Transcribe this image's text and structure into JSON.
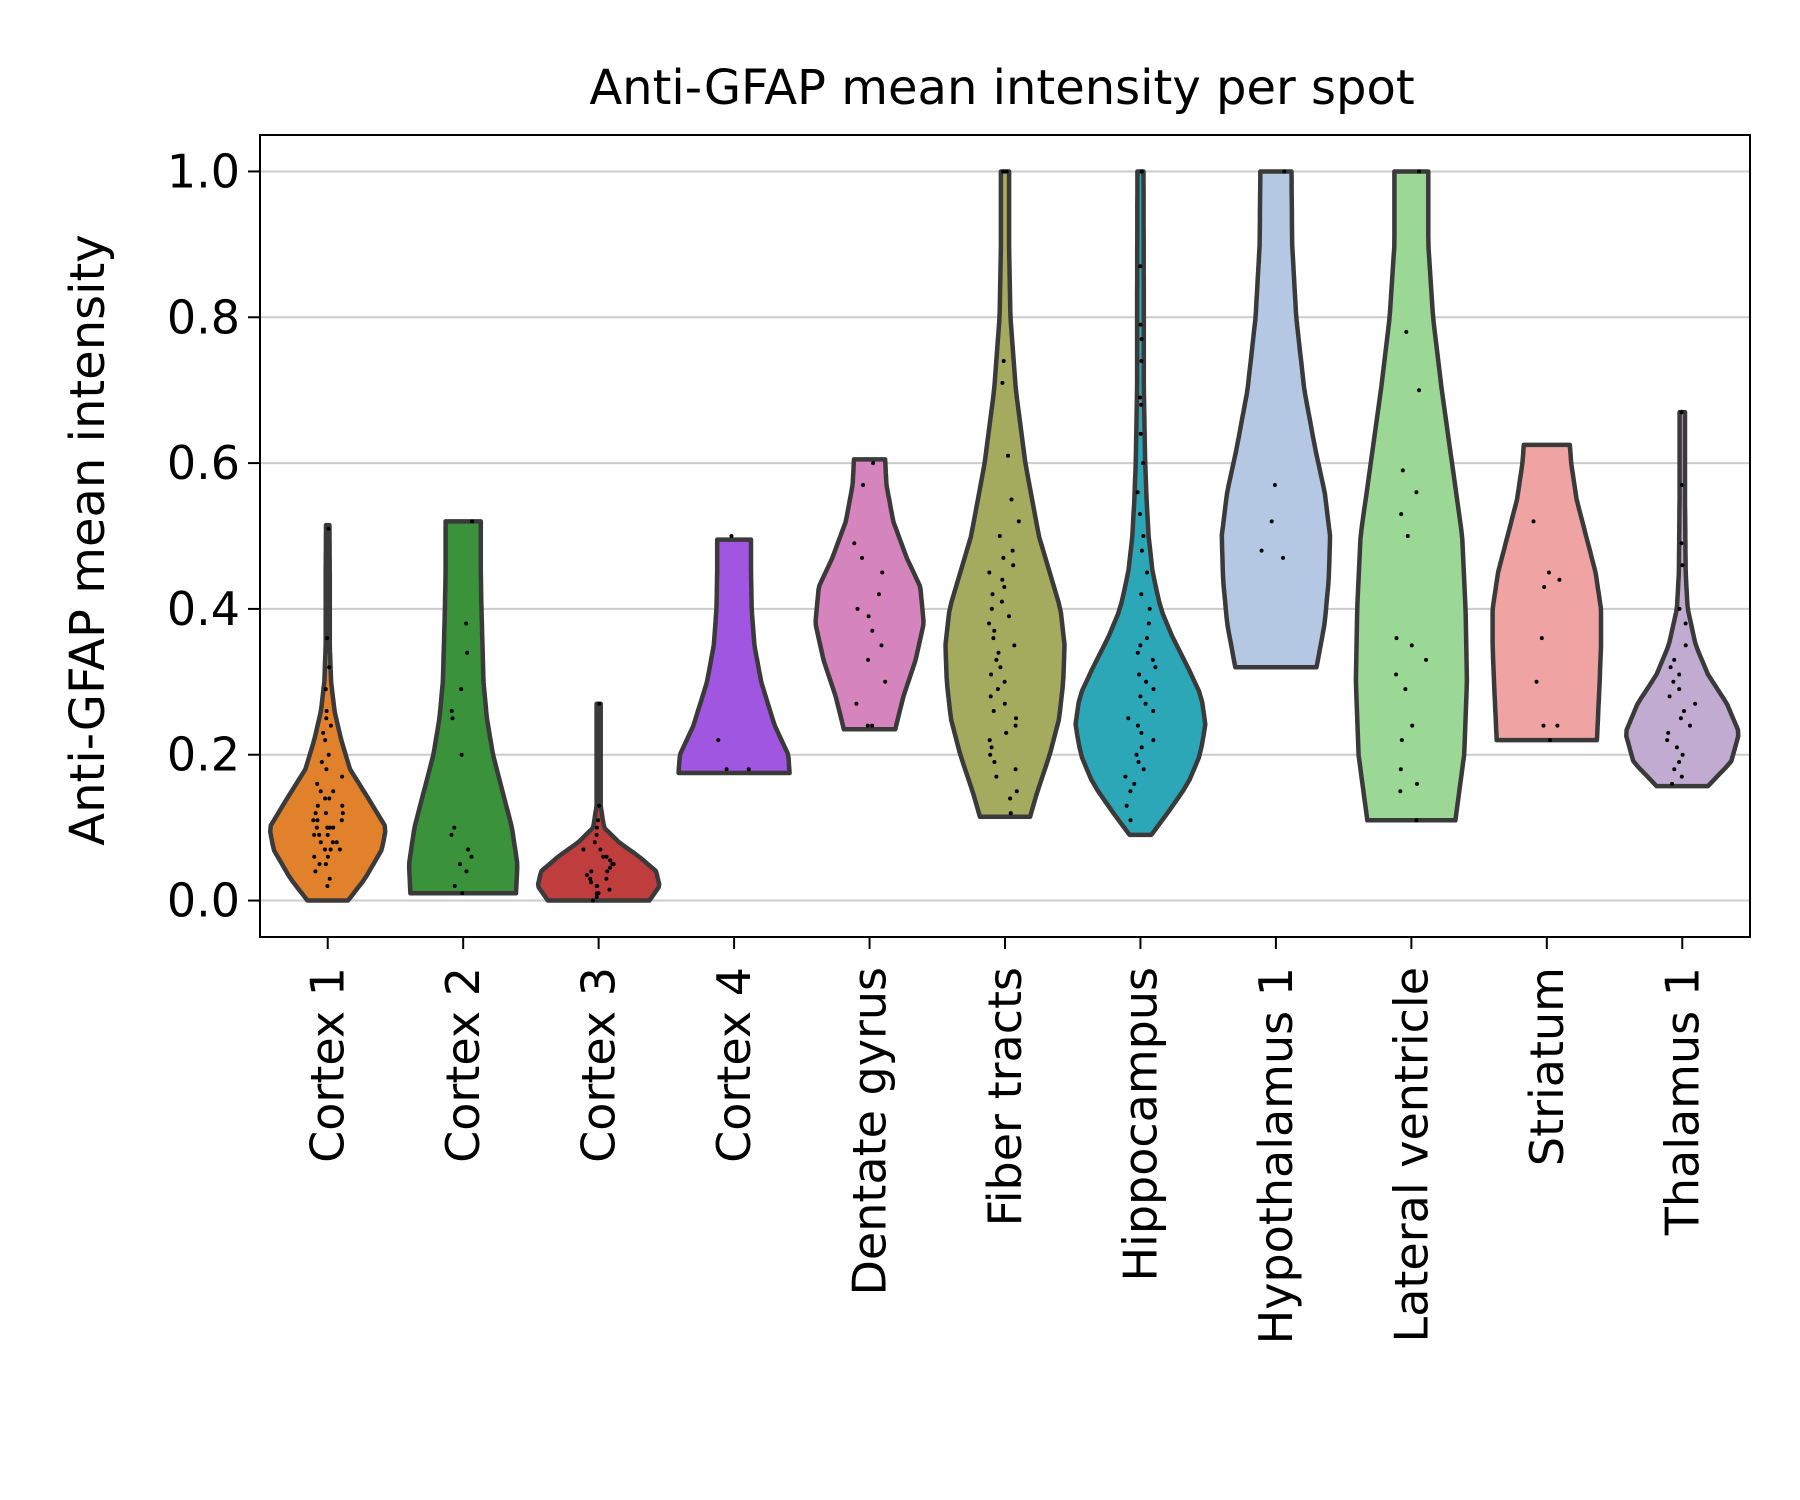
{
  "chart_data": {
    "type": "violin",
    "title": "Anti-GFAP mean intensity per spot",
    "ylabel": "Anti-GFAP mean intensity",
    "xlabel": "",
    "ylim": [
      -0.05,
      1.05
    ],
    "yticks": [
      0.0,
      0.2,
      0.4,
      0.6,
      0.8,
      1.0
    ],
    "ytick_labels": [
      "0.0",
      "0.2",
      "0.4",
      "0.6",
      "0.8",
      "1.0"
    ],
    "grid": "horizontal",
    "categories": [
      "Cortex 1",
      "Cortex 2",
      "Cortex 3",
      "Cortex 4",
      "Dentate gyrus",
      "Fiber tracts",
      "Hippocampus",
      "Hypothalamus 1",
      "Lateral ventricle",
      "Striatum",
      "Thalamus 1"
    ],
    "series": [
      {
        "category": "Cortex 1",
        "color": "#e1812c",
        "min": 0.0,
        "max": 0.515,
        "width_profile": [
          [
            0.0,
            0.3
          ],
          [
            0.03,
            0.55
          ],
          [
            0.07,
            0.8
          ],
          [
            0.1,
            0.86
          ],
          [
            0.14,
            0.6
          ],
          [
            0.18,
            0.33
          ],
          [
            0.22,
            0.2
          ],
          [
            0.26,
            0.1
          ],
          [
            0.3,
            0.05
          ],
          [
            0.35,
            0.03
          ],
          [
            0.45,
            0.03
          ],
          [
            0.515,
            0.025
          ]
        ],
        "points": [
          0.02,
          0.03,
          0.04,
          0.05,
          0.05,
          0.06,
          0.06,
          0.07,
          0.07,
          0.07,
          0.08,
          0.08,
          0.08,
          0.09,
          0.09,
          0.09,
          0.1,
          0.1,
          0.1,
          0.1,
          0.11,
          0.11,
          0.11,
          0.12,
          0.12,
          0.12,
          0.13,
          0.13,
          0.14,
          0.14,
          0.15,
          0.15,
          0.16,
          0.17,
          0.18,
          0.19,
          0.2,
          0.22,
          0.23,
          0.24,
          0.25,
          0.26,
          0.29,
          0.32,
          0.36,
          0.51
        ]
      },
      {
        "category": "Cortex 2",
        "color": "#3a923a",
        "min": 0.01,
        "max": 0.52,
        "width_profile": [
          [
            0.01,
            0.78
          ],
          [
            0.05,
            0.8
          ],
          [
            0.1,
            0.72
          ],
          [
            0.15,
            0.58
          ],
          [
            0.2,
            0.44
          ],
          [
            0.25,
            0.35
          ],
          [
            0.3,
            0.3
          ],
          [
            0.4,
            0.27
          ],
          [
            0.45,
            0.26
          ],
          [
            0.52,
            0.26
          ]
        ],
        "points": [
          0.01,
          0.02,
          0.04,
          0.05,
          0.06,
          0.07,
          0.09,
          0.1,
          0.2,
          0.25,
          0.26,
          0.29,
          0.34,
          0.38,
          0.52
        ]
      },
      {
        "category": "Cortex 3",
        "color": "#c03d3e",
        "min": 0.0,
        "max": 0.27,
        "width_profile": [
          [
            0.0,
            0.75
          ],
          [
            0.02,
            0.9
          ],
          [
            0.04,
            0.85
          ],
          [
            0.06,
            0.6
          ],
          [
            0.08,
            0.3
          ],
          [
            0.1,
            0.08
          ],
          [
            0.13,
            0.03
          ],
          [
            0.2,
            0.03
          ],
          [
            0.27,
            0.03
          ]
        ],
        "points": [
          0.0,
          0.005,
          0.01,
          0.01,
          0.015,
          0.02,
          0.02,
          0.025,
          0.03,
          0.03,
          0.035,
          0.04,
          0.04,
          0.045,
          0.05,
          0.05,
          0.055,
          0.06,
          0.06,
          0.07,
          0.07,
          0.08,
          0.09,
          0.1,
          0.11,
          0.13,
          0.27
        ]
      },
      {
        "category": "Cortex 4",
        "color": "#9372b2",
        "fill": "#a056e0",
        "min": 0.175,
        "max": 0.495,
        "width_profile": [
          [
            0.175,
            0.82
          ],
          [
            0.2,
            0.8
          ],
          [
            0.24,
            0.6
          ],
          [
            0.3,
            0.4
          ],
          [
            0.35,
            0.3
          ],
          [
            0.4,
            0.26
          ],
          [
            0.45,
            0.25
          ],
          [
            0.495,
            0.25
          ]
        ],
        "points": [
          0.18,
          0.18,
          0.22,
          0.5
        ]
      },
      {
        "category": "Dentate gyrus",
        "color": "#d684bd",
        "min": 0.235,
        "max": 0.605,
        "width_profile": [
          [
            0.235,
            0.38
          ],
          [
            0.28,
            0.5
          ],
          [
            0.33,
            0.68
          ],
          [
            0.38,
            0.8
          ],
          [
            0.43,
            0.75
          ],
          [
            0.47,
            0.55
          ],
          [
            0.52,
            0.35
          ],
          [
            0.57,
            0.25
          ],
          [
            0.605,
            0.23
          ]
        ],
        "points": [
          0.24,
          0.24,
          0.27,
          0.3,
          0.33,
          0.35,
          0.37,
          0.39,
          0.4,
          0.42,
          0.45,
          0.47,
          0.49,
          0.57,
          0.6
        ]
      },
      {
        "category": "Fiber tracts",
        "color": "#a9aa35",
        "fill": "#a4aa5e",
        "min": 0.115,
        "max": 1.0,
        "width_profile": [
          [
            0.115,
            0.37
          ],
          [
            0.15,
            0.48
          ],
          [
            0.2,
            0.66
          ],
          [
            0.25,
            0.8
          ],
          [
            0.3,
            0.86
          ],
          [
            0.35,
            0.88
          ],
          [
            0.4,
            0.82
          ],
          [
            0.45,
            0.66
          ],
          [
            0.5,
            0.5
          ],
          [
            0.55,
            0.4
          ],
          [
            0.6,
            0.3
          ],
          [
            0.7,
            0.16
          ],
          [
            0.8,
            0.08
          ],
          [
            0.9,
            0.06
          ],
          [
            1.0,
            0.06
          ]
        ],
        "points": [
          0.12,
          0.14,
          0.15,
          0.17,
          0.18,
          0.19,
          0.2,
          0.21,
          0.22,
          0.23,
          0.24,
          0.25,
          0.26,
          0.27,
          0.28,
          0.29,
          0.3,
          0.31,
          0.32,
          0.33,
          0.34,
          0.35,
          0.36,
          0.37,
          0.38,
          0.39,
          0.4,
          0.41,
          0.42,
          0.43,
          0.44,
          0.45,
          0.46,
          0.47,
          0.48,
          0.5,
          0.52,
          0.55,
          0.61,
          0.71,
          0.74,
          1.0,
          1.0
        ]
      },
      {
        "category": "Hippocampus",
        "color": "#2ba7b8",
        "min": 0.09,
        "max": 1.0,
        "width_profile": [
          [
            0.09,
            0.16
          ],
          [
            0.12,
            0.4
          ],
          [
            0.16,
            0.7
          ],
          [
            0.2,
            0.88
          ],
          [
            0.24,
            0.96
          ],
          [
            0.28,
            0.9
          ],
          [
            0.32,
            0.7
          ],
          [
            0.36,
            0.48
          ],
          [
            0.4,
            0.3
          ],
          [
            0.45,
            0.18
          ],
          [
            0.5,
            0.12
          ],
          [
            0.55,
            0.09
          ],
          [
            0.6,
            0.07
          ],
          [
            0.7,
            0.05
          ],
          [
            0.8,
            0.05
          ],
          [
            1.0,
            0.045
          ]
        ],
        "points": [
          0.11,
          0.13,
          0.15,
          0.16,
          0.17,
          0.18,
          0.19,
          0.2,
          0.21,
          0.22,
          0.23,
          0.24,
          0.25,
          0.26,
          0.27,
          0.28,
          0.29,
          0.3,
          0.31,
          0.32,
          0.33,
          0.34,
          0.35,
          0.36,
          0.38,
          0.4,
          0.42,
          0.45,
          0.48,
          0.5,
          0.53,
          0.56,
          0.6,
          0.64,
          0.68,
          0.69,
          0.74,
          0.77,
          0.79,
          0.87,
          1.0
        ]
      },
      {
        "category": "Hypothalamus 1",
        "color": "#a9c0e0",
        "fill": "#b5c8e3",
        "min": 0.32,
        "max": 1.0,
        "width_profile": [
          [
            0.32,
            0.6
          ],
          [
            0.38,
            0.72
          ],
          [
            0.44,
            0.78
          ],
          [
            0.5,
            0.8
          ],
          [
            0.56,
            0.72
          ],
          [
            0.62,
            0.58
          ],
          [
            0.7,
            0.42
          ],
          [
            0.8,
            0.3
          ],
          [
            0.9,
            0.24
          ],
          [
            1.0,
            0.23
          ]
        ],
        "points": [
          0.47,
          0.48,
          0.52,
          0.57,
          1.0
        ]
      },
      {
        "category": "Lateral ventricle",
        "color": "#9bd795",
        "min": 0.11,
        "max": 1.0,
        "width_profile": [
          [
            0.11,
            0.65
          ],
          [
            0.2,
            0.78
          ],
          [
            0.3,
            0.82
          ],
          [
            0.4,
            0.8
          ],
          [
            0.5,
            0.75
          ],
          [
            0.6,
            0.6
          ],
          [
            0.7,
            0.45
          ],
          [
            0.8,
            0.32
          ],
          [
            0.9,
            0.25
          ],
          [
            1.0,
            0.25
          ]
        ],
        "points": [
          0.11,
          0.15,
          0.16,
          0.18,
          0.22,
          0.24,
          0.29,
          0.31,
          0.33,
          0.35,
          0.36,
          0.5,
          0.53,
          0.56,
          0.59,
          0.7,
          0.78,
          1.0
        ]
      },
      {
        "category": "Striatum",
        "color": "#f0a3a3",
        "min": 0.22,
        "max": 0.625,
        "width_profile": [
          [
            0.22,
            0.74
          ],
          [
            0.26,
            0.76
          ],
          [
            0.3,
            0.78
          ],
          [
            0.35,
            0.8
          ],
          [
            0.4,
            0.8
          ],
          [
            0.45,
            0.72
          ],
          [
            0.5,
            0.58
          ],
          [
            0.55,
            0.44
          ],
          [
            0.6,
            0.36
          ],
          [
            0.625,
            0.34
          ]
        ],
        "points": [
          0.22,
          0.24,
          0.24,
          0.3,
          0.36,
          0.43,
          0.44,
          0.45,
          0.52
        ]
      },
      {
        "category": "Thalamus 1",
        "color": "#c1abd0",
        "min": 0.157,
        "max": 0.67,
        "width_profile": [
          [
            0.157,
            0.38
          ],
          [
            0.19,
            0.72
          ],
          [
            0.23,
            0.84
          ],
          [
            0.27,
            0.66
          ],
          [
            0.31,
            0.38
          ],
          [
            0.35,
            0.2
          ],
          [
            0.4,
            0.08
          ],
          [
            0.45,
            0.05
          ],
          [
            0.55,
            0.04
          ],
          [
            0.67,
            0.04
          ]
        ],
        "points": [
          0.16,
          0.17,
          0.18,
          0.19,
          0.2,
          0.21,
          0.22,
          0.23,
          0.24,
          0.25,
          0.26,
          0.27,
          0.28,
          0.29,
          0.3,
          0.31,
          0.32,
          0.33,
          0.35,
          0.38,
          0.4,
          0.46,
          0.49,
          0.57,
          0.67
        ]
      }
    ]
  }
}
